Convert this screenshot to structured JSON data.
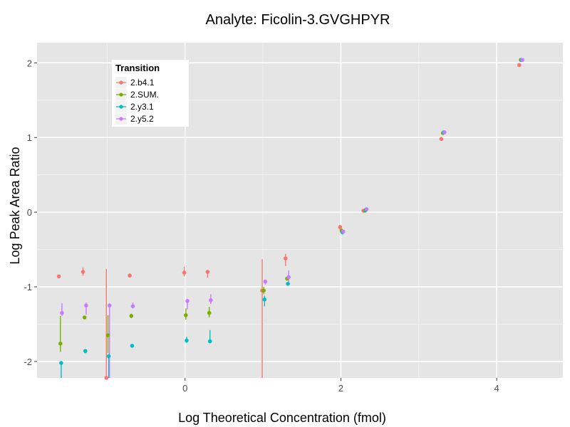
{
  "chart_data": {
    "type": "scatter",
    "title": "Analyte: Ficolin-3.GVGHPYR",
    "xlabel": "Log Theoretical Concentration (fmol)",
    "ylabel": "Log Peak Area Ratio",
    "xlim": [
      -1.9,
      4.85
    ],
    "ylim": [
      -2.22,
      2.27
    ],
    "x_ticks": [
      0,
      2,
      4
    ],
    "y_ticks": [
      -2,
      -1,
      0,
      1,
      2
    ],
    "grid": true,
    "legend": {
      "title": "Transition",
      "position": "top-left"
    },
    "series": [
      {
        "name": "2.b4.1",
        "color": "#F8766D",
        "points": [
          {
            "x": -1.62,
            "y": -0.86,
            "lo": -0.88,
            "hi": -0.84
          },
          {
            "x": -1.31,
            "y": -0.8,
            "lo": -0.85,
            "hi": -0.74
          },
          {
            "x": -1.01,
            "y": -2.22,
            "lo": -2.22,
            "hi": -0.76
          },
          {
            "x": -0.71,
            "y": -0.85,
            "lo": -0.87,
            "hi": -0.82
          },
          {
            "x": -0.01,
            "y": -0.81,
            "lo": -0.86,
            "hi": -0.73
          },
          {
            "x": 0.29,
            "y": -0.8,
            "lo": -0.88,
            "hi": -0.78
          },
          {
            "x": 0.99,
            "y": -1.05,
            "lo": -2.22,
            "hi": -0.63
          },
          {
            "x": 1.29,
            "y": -0.62,
            "lo": -0.72,
            "hi": -0.56
          },
          {
            "x": 1.99,
            "y": -0.2,
            "lo": -0.24,
            "hi": -0.17
          },
          {
            "x": 2.29,
            "y": 0.02,
            "lo": 0.0,
            "hi": 0.03
          },
          {
            "x": 3.29,
            "y": 0.98,
            "lo": 0.96,
            "hi": 0.99
          },
          {
            "x": 4.29,
            "y": 1.97,
            "lo": 1.95,
            "hi": 1.98
          }
        ]
      },
      {
        "name": "2.SUM.",
        "color": "#7CAE00",
        "points": [
          {
            "x": -1.6,
            "y": -1.76,
            "lo": -1.87,
            "hi": -1.39
          },
          {
            "x": -1.29,
            "y": -1.41,
            "lo": -1.43,
            "hi": -1.39
          },
          {
            "x": -0.99,
            "y": -1.65,
            "lo": -1.89,
            "hi": -1.38
          },
          {
            "x": -0.69,
            "y": -1.39,
            "lo": -1.42,
            "hi": -1.36
          },
          {
            "x": 0.01,
            "y": -1.38,
            "lo": -1.44,
            "hi": -1.29
          },
          {
            "x": 0.31,
            "y": -1.35,
            "lo": -1.41,
            "hi": -1.27
          },
          {
            "x": 1.01,
            "y": -1.05,
            "lo": -1.1,
            "hi": -1.0
          },
          {
            "x": 1.31,
            "y": -0.89,
            "lo": -0.91,
            "hi": -0.87
          },
          {
            "x": 2.01,
            "y": -0.25,
            "lo": -0.28,
            "hi": -0.22
          },
          {
            "x": 2.31,
            "y": 0.02,
            "lo": 0.0,
            "hi": 0.03
          },
          {
            "x": 3.31,
            "y": 1.06,
            "lo": 1.04,
            "hi": 1.08
          },
          {
            "x": 4.31,
            "y": 2.04,
            "lo": 2.02,
            "hi": 2.05
          }
        ]
      },
      {
        "name": "2.y3.1",
        "color": "#00BFC4",
        "points": [
          {
            "x": -1.59,
            "y": -2.02,
            "lo": -2.22,
            "hi": -2.0
          },
          {
            "x": -1.28,
            "y": -1.86,
            "lo": -1.89,
            "hi": -1.84
          },
          {
            "x": -0.98,
            "y": -1.93,
            "lo": -2.22,
            "hi": -1.9
          },
          {
            "x": -0.68,
            "y": -1.79,
            "lo": -1.8,
            "hi": -1.78
          },
          {
            "x": 0.02,
            "y": -1.72,
            "lo": -1.75,
            "hi": -1.67
          },
          {
            "x": 0.32,
            "y": -1.73,
            "lo": -1.75,
            "hi": -1.58
          },
          {
            "x": 1.02,
            "y": -1.17,
            "lo": -1.26,
            "hi": -1.12
          },
          {
            "x": 1.32,
            "y": -0.96,
            "lo": -0.98,
            "hi": -0.94
          },
          {
            "x": 2.02,
            "y": -0.27,
            "lo": -0.3,
            "hi": -0.24
          },
          {
            "x": 2.32,
            "y": 0.03,
            "lo": 0.01,
            "hi": 0.04
          },
          {
            "x": 3.32,
            "y": 1.07,
            "lo": 1.05,
            "hi": 1.09
          },
          {
            "x": 4.32,
            "y": 2.04,
            "lo": 2.02,
            "hi": 2.05
          }
        ]
      },
      {
        "name": "2.y5.2",
        "color": "#C77CFF",
        "points": [
          {
            "x": -1.58,
            "y": -1.35,
            "lo": -1.39,
            "hi": -1.22
          },
          {
            "x": -1.27,
            "y": -1.25,
            "lo": -1.37,
            "hi": -1.21
          },
          {
            "x": -0.97,
            "y": -1.25,
            "lo": -2.22,
            "hi": -1.22
          },
          {
            "x": -0.67,
            "y": -1.26,
            "lo": -1.29,
            "hi": -1.21
          },
          {
            "x": 0.03,
            "y": -1.19,
            "lo": -1.3,
            "hi": -1.16
          },
          {
            "x": 0.33,
            "y": -1.18,
            "lo": -1.23,
            "hi": -1.1
          },
          {
            "x": 1.03,
            "y": -0.93,
            "lo": -0.97,
            "hi": -0.9
          },
          {
            "x": 1.33,
            "y": -0.87,
            "lo": -0.95,
            "hi": -0.78
          },
          {
            "x": 2.03,
            "y": -0.26,
            "lo": -0.28,
            "hi": -0.24
          },
          {
            "x": 2.33,
            "y": 0.04,
            "lo": 0.02,
            "hi": 0.05
          },
          {
            "x": 3.33,
            "y": 1.07,
            "lo": 1.05,
            "hi": 1.09
          },
          {
            "x": 4.33,
            "y": 2.04,
            "lo": 2.02,
            "hi": 2.05
          }
        ]
      }
    ]
  }
}
